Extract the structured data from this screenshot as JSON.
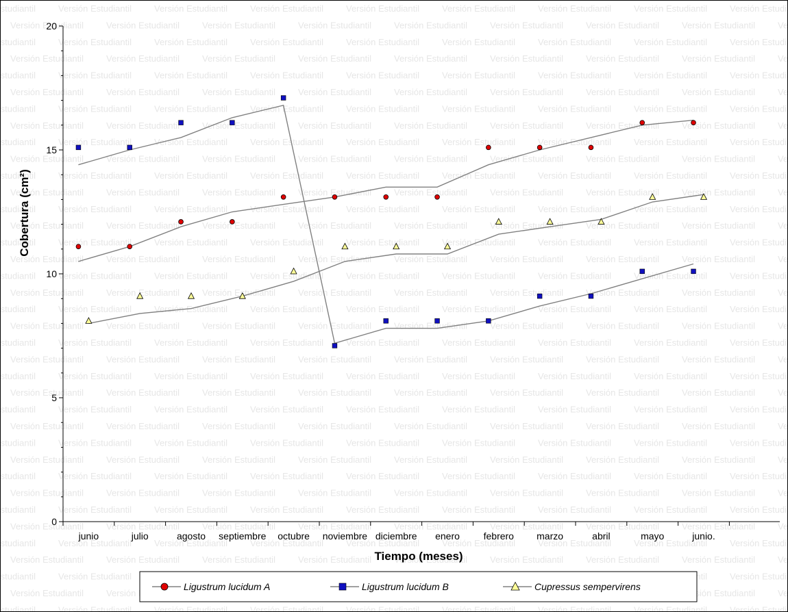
{
  "watermark": "Versión Estudiantil",
  "colors": {
    "trend_line": "#808080",
    "axis": "#000000",
    "series_a": "#e00000",
    "series_b": "#1010c0",
    "series_c": "#ffff99"
  },
  "chart_data": {
    "type": "scatter",
    "title": "",
    "xlabel": "Tiempo (meses)",
    "ylabel": "Cobertura (cm²)",
    "ylim": [
      0,
      20
    ],
    "yticks": [
      0,
      5,
      10,
      15,
      20
    ],
    "categories": [
      "junio",
      "julio",
      "agosto",
      "septiembre",
      "octubre",
      "noviembre",
      "diciembre",
      "enero",
      "febrero",
      "marzo",
      "abril",
      "mayo",
      "junio."
    ],
    "grid": false,
    "legend_position": "bottom",
    "series": [
      {
        "name": "Ligustrum lucidum A",
        "marker": "circle",
        "color": "#e00000",
        "points": [
          [
            0.8,
            11.1
          ],
          [
            1.8,
            11.1
          ],
          [
            2.8,
            12.1
          ],
          [
            3.8,
            12.1
          ],
          [
            4.8,
            13.1
          ],
          [
            5.8,
            13.1
          ],
          [
            6.8,
            13.1
          ],
          [
            7.8,
            13.1
          ],
          [
            8.8,
            15.1
          ],
          [
            9.8,
            15.1
          ],
          [
            10.8,
            15.1
          ],
          [
            11.8,
            16.1
          ],
          [
            12.8,
            16.1
          ]
        ],
        "trend": [
          [
            0.8,
            10.5
          ],
          [
            1.8,
            11.1
          ],
          [
            2.8,
            11.9
          ],
          [
            3.8,
            12.5
          ],
          [
            4.8,
            12.8
          ],
          [
            5.8,
            13.1
          ],
          [
            6.8,
            13.5
          ],
          [
            7.8,
            13.5
          ],
          [
            8.8,
            14.4
          ],
          [
            9.8,
            15.0
          ],
          [
            10.8,
            15.5
          ],
          [
            11.8,
            16.0
          ],
          [
            12.8,
            16.2
          ]
        ]
      },
      {
        "name": "Ligustrum lucidum B",
        "marker": "square",
        "color": "#1010c0",
        "points": [
          [
            0.8,
            15.1
          ],
          [
            1.8,
            15.1
          ],
          [
            2.8,
            16.1
          ],
          [
            3.8,
            16.1
          ],
          [
            4.8,
            17.1
          ],
          [
            5.8,
            7.1
          ],
          [
            6.8,
            8.1
          ],
          [
            7.8,
            8.1
          ],
          [
            8.8,
            8.1
          ],
          [
            9.8,
            9.1
          ],
          [
            10.8,
            9.1
          ],
          [
            11.8,
            10.1
          ],
          [
            12.8,
            10.1
          ]
        ],
        "trend": [
          [
            0.8,
            14.4
          ],
          [
            1.8,
            15.0
          ],
          [
            2.8,
            15.5
          ],
          [
            3.8,
            16.3
          ],
          [
            4.8,
            16.8
          ],
          [
            5.8,
            7.2
          ],
          [
            6.8,
            7.8
          ],
          [
            7.8,
            7.8
          ],
          [
            8.8,
            8.1
          ],
          [
            9.8,
            8.7
          ],
          [
            10.8,
            9.2
          ],
          [
            11.8,
            9.8
          ],
          [
            12.8,
            10.4
          ]
        ]
      },
      {
        "name": "Cupressus sempervirens",
        "marker": "triangle",
        "color": "#ffff99",
        "points": [
          [
            1.0,
            8.1
          ],
          [
            2.0,
            9.1
          ],
          [
            3.0,
            9.1
          ],
          [
            4.0,
            9.1
          ],
          [
            5.0,
            10.1
          ],
          [
            6.0,
            11.1
          ],
          [
            7.0,
            11.1
          ],
          [
            8.0,
            11.1
          ],
          [
            9.0,
            12.1
          ],
          [
            10.0,
            12.1
          ],
          [
            11.0,
            12.1
          ],
          [
            12.0,
            13.1
          ],
          [
            13.0,
            13.1
          ]
        ],
        "trend": [
          [
            1.0,
            8.0
          ],
          [
            2.0,
            8.4
          ],
          [
            3.0,
            8.6
          ],
          [
            4.0,
            9.1
          ],
          [
            5.0,
            9.7
          ],
          [
            6.0,
            10.5
          ],
          [
            7.0,
            10.8
          ],
          [
            8.0,
            10.8
          ],
          [
            9.0,
            11.6
          ],
          [
            10.0,
            11.9
          ],
          [
            11.0,
            12.2
          ],
          [
            12.0,
            12.9
          ],
          [
            13.0,
            13.2
          ]
        ]
      }
    ]
  }
}
